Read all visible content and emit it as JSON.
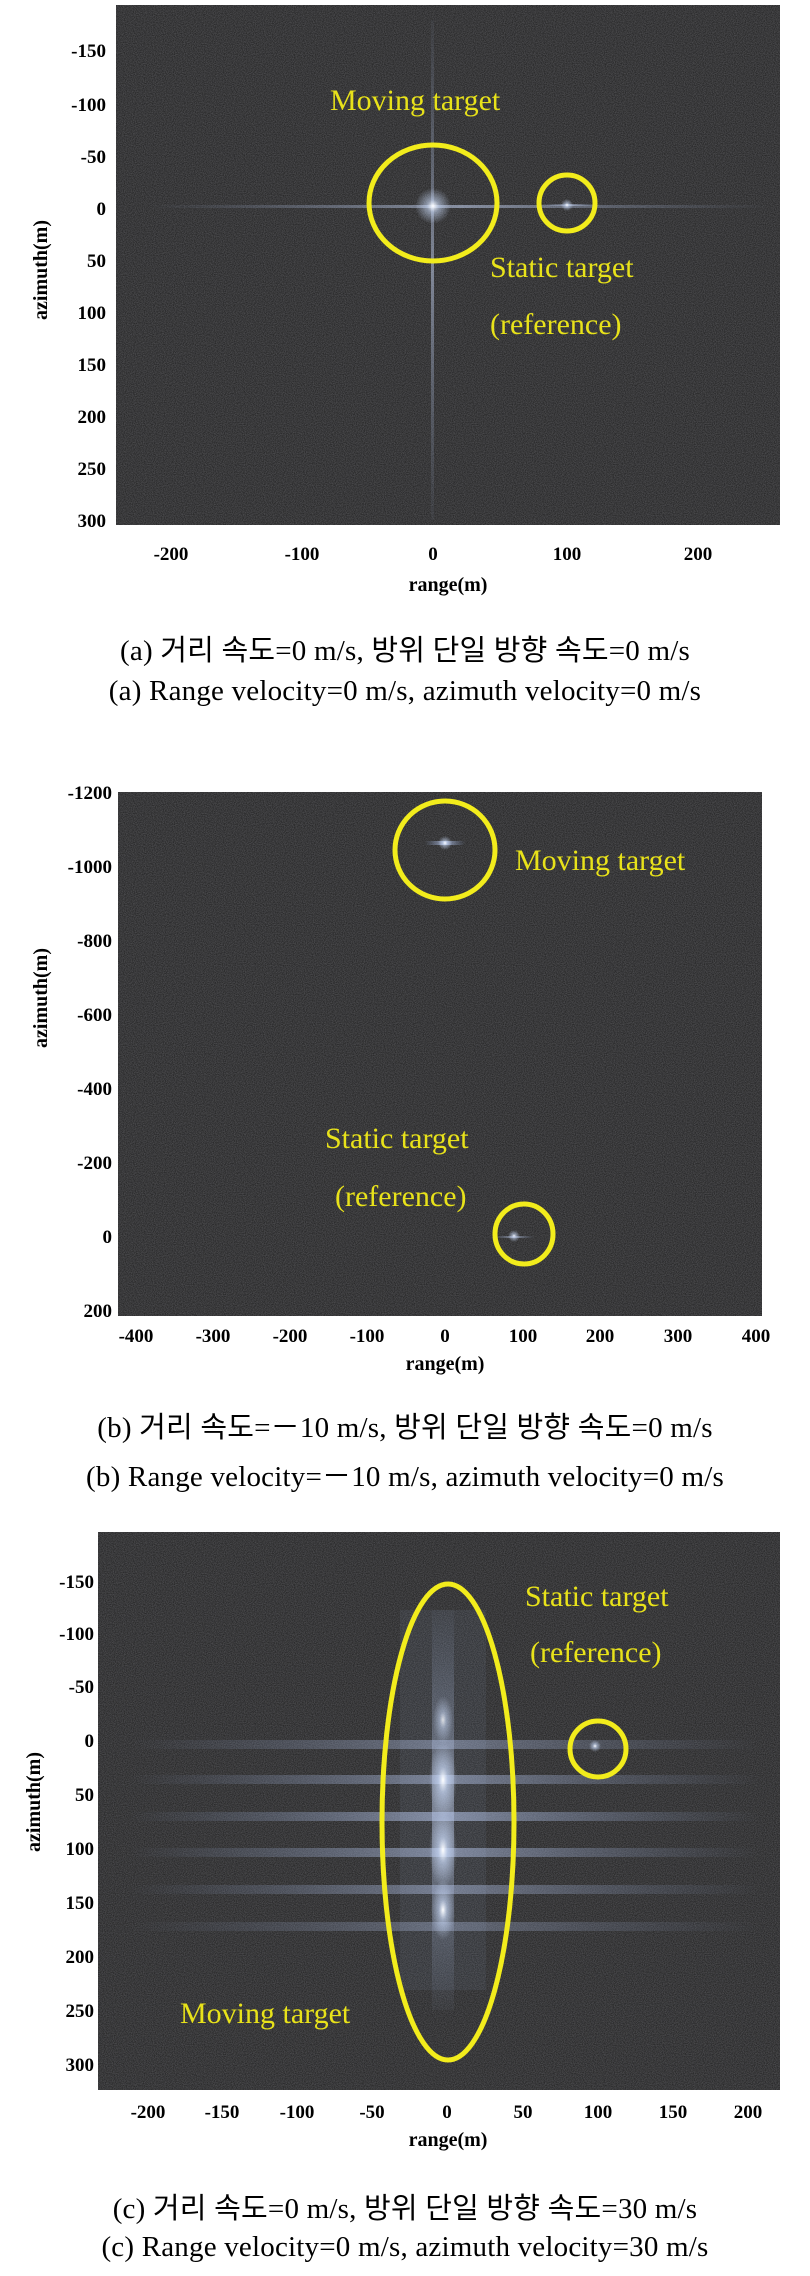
{
  "panels": [
    {
      "id": "a",
      "xlabel": "range(m)",
      "ylabel": "azimuth(m)",
      "xticks": [
        "-200",
        "-100",
        "0",
        "100",
        "200"
      ],
      "yticks": [
        "-150",
        "-100",
        "-50",
        "0",
        "50",
        "100",
        "150",
        "200",
        "250",
        "300"
      ],
      "annotations": {
        "moving": "Moving target",
        "static1": "Static target",
        "static2": "(reference)"
      },
      "caption_ko": "(a) 거리 속도=0 m/s, 방위 단일 방향 속도=0 m/s",
      "caption_en": "(a) Range velocity=0 m/s, azimuth velocity=0 m/s"
    },
    {
      "id": "b",
      "xlabel": "range(m)",
      "ylabel": "azimuth(m)",
      "xticks": [
        "-400",
        "-300",
        "-200",
        "-100",
        "0",
        "100",
        "200",
        "300",
        "400"
      ],
      "yticks": [
        "-1200",
        "-1000",
        "-800",
        "-600",
        "-400",
        "-200",
        "0",
        "200"
      ],
      "annotations": {
        "moving": "Moving target",
        "static1": "Static target",
        "static2": "(reference)"
      },
      "caption_ko": "(b) 거리 속도=－10 m/s, 방위 단일 방향 속도=0 m/s",
      "caption_en": "(b) Range velocity=－10 m/s, azimuth velocity=0 m/s"
    },
    {
      "id": "c",
      "xlabel": "range(m)",
      "ylabel": "azimuth(m)",
      "xticks": [
        "-200",
        "-150",
        "-100",
        "-50",
        "0",
        "50",
        "100",
        "150",
        "200"
      ],
      "yticks": [
        "-150",
        "-100",
        "-50",
        "0",
        "50",
        "100",
        "150",
        "200",
        "250",
        "300"
      ],
      "annotations": {
        "moving": "Moving target",
        "static1": "Static target",
        "static2": "(reference)"
      },
      "caption_ko": "(c) 거리 속도=0 m/s, 방위 단일 방향 속도=30 m/s",
      "caption_en": "(c) Range velocity=0 m/s, azimuth velocity=30 m/s"
    }
  ],
  "colors": {
    "background": "#151515",
    "highlight": "#f2ec1c",
    "annotation_text": "#e8e21a",
    "target_glow": "#cfe0ff"
  }
}
